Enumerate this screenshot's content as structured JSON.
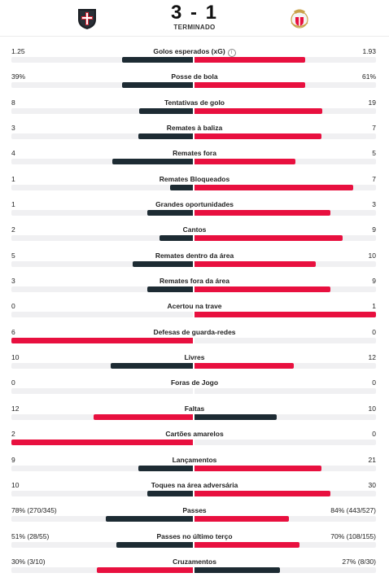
{
  "match": {
    "score": "3 - 1",
    "status": "TERMINADO",
    "home_crest_icon": "casa-pia-crest-icon",
    "away_crest_icon": "benfica-crest-icon"
  },
  "colors": {
    "home": "#1d2b33",
    "away": "#e8103f",
    "track": "#f0f0f2"
  },
  "stats": [
    {
      "label": "Golos esperados (xG)",
      "home": "1.25",
      "away": "1.93",
      "home_share": 0.39,
      "away_share": 0.61,
      "info": true
    },
    {
      "label": "Posse de bola",
      "home": "39%",
      "away": "61%",
      "home_share": 0.39,
      "away_share": 0.61
    },
    {
      "label": "Tentativas de golo",
      "home": "8",
      "away": "19",
      "home_share": 0.296,
      "away_share": 0.704
    },
    {
      "label": "Remates à baliza",
      "home": "3",
      "away": "7",
      "home_share": 0.3,
      "away_share": 0.7
    },
    {
      "label": "Remates fora",
      "home": "4",
      "away": "5",
      "home_share": 0.444,
      "away_share": 0.556
    },
    {
      "label": "Remates Bloqueados",
      "home": "1",
      "away": "7",
      "home_share": 0.125,
      "away_share": 0.875
    },
    {
      "label": "Grandes oportunidades",
      "home": "1",
      "away": "3",
      "home_share": 0.25,
      "away_share": 0.75
    },
    {
      "label": "Cantos",
      "home": "2",
      "away": "9",
      "home_share": 0.182,
      "away_share": 0.818
    },
    {
      "label": "Remates dentro da área",
      "home": "5",
      "away": "10",
      "home_share": 0.333,
      "away_share": 0.667
    },
    {
      "label": "Remates fora da área",
      "home": "3",
      "away": "9",
      "home_share": 0.25,
      "away_share": 0.75
    },
    {
      "label": "Acertou na trave",
      "home": "0",
      "away": "1",
      "home_share": 0,
      "away_share": 1
    },
    {
      "label": "Defesas de guarda-redes",
      "home": "6",
      "away": "0",
      "home_share": 1,
      "away_share": 0,
      "home_leads": true
    },
    {
      "label": "Livres",
      "home": "10",
      "away": "12",
      "home_share": 0.455,
      "away_share": 0.545
    },
    {
      "label": "Foras de Jogo",
      "home": "0",
      "away": "0",
      "home_share": 0,
      "away_share": 0
    },
    {
      "label": "Faltas",
      "home": "12",
      "away": "10",
      "home_share": 0.545,
      "away_share": 0.455,
      "home_leads": true
    },
    {
      "label": "Cartões amarelos",
      "home": "2",
      "away": "0",
      "home_share": 1,
      "away_share": 0,
      "home_leads": true
    },
    {
      "label": "Lançamentos",
      "home": "9",
      "away": "21",
      "home_share": 0.3,
      "away_share": 0.7
    },
    {
      "label": "Toques na área adversária",
      "home": "10",
      "away": "30",
      "home_share": 0.25,
      "away_share": 0.75
    },
    {
      "label": "Passes",
      "home": "78% (270/345)",
      "away": "84% (443/527)",
      "home_share": 0.48,
      "away_share": 0.52
    },
    {
      "label": "Passes no último terço",
      "home": "51% (28/55)",
      "away": "70% (108/155)",
      "home_share": 0.42,
      "away_share": 0.58
    },
    {
      "label": "Cruzamentos",
      "home": "30% (3/10)",
      "away": "27% (8/30)",
      "home_share": 0.53,
      "away_share": 0.47,
      "home_leads": true
    }
  ]
}
